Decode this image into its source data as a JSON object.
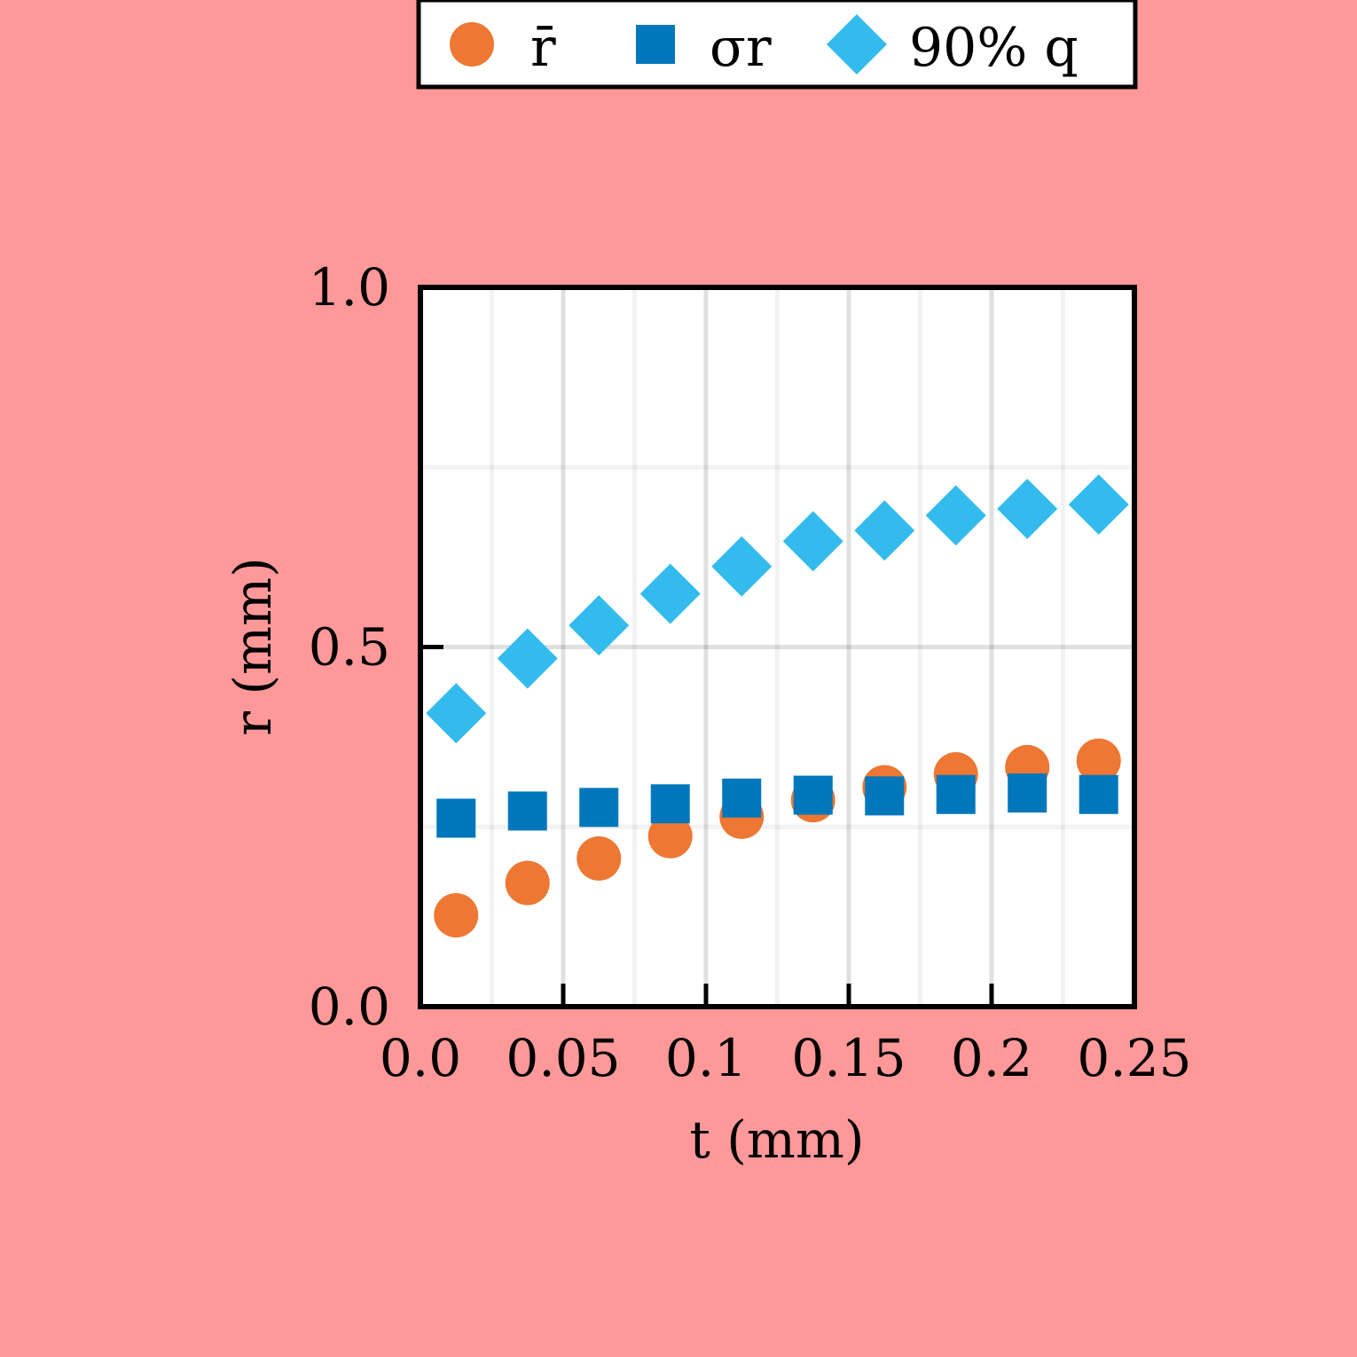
{
  "chart_data": {
    "type": "scatter",
    "xlabel": "t (mm)",
    "ylabel": "r (mm)",
    "xlim": [
      0.0,
      0.25
    ],
    "ylim": [
      0.0,
      1.0
    ],
    "x_ticks": [
      "0.0",
      "0.05",
      "0.1",
      "0.15",
      "0.2",
      "0.25"
    ],
    "y_ticks": [
      "0.0",
      "0.5",
      "1.0"
    ],
    "grid": true,
    "legend_position": "top",
    "x": [
      0.0125,
      0.0375,
      0.0625,
      0.0875,
      0.1125,
      0.1375,
      0.1625,
      0.1875,
      0.2125,
      0.2375
    ],
    "series": [
      {
        "name": "r̄",
        "marker": "circle",
        "color": "#ed7733",
        "values": [
          0.127,
          0.172,
          0.206,
          0.237,
          0.264,
          0.287,
          0.305,
          0.323,
          0.333,
          0.342
        ]
      },
      {
        "name": "σr",
        "marker": "square",
        "color": "#0077bb",
        "values": [
          0.262,
          0.272,
          0.277,
          0.282,
          0.29,
          0.294,
          0.293,
          0.295,
          0.297,
          0.295
        ]
      },
      {
        "name": "90% q",
        "marker": "diamond",
        "color": "#33bbee",
        "values": [
          0.408,
          0.484,
          0.53,
          0.574,
          0.612,
          0.647,
          0.662,
          0.683,
          0.692,
          0.698
        ]
      }
    ]
  }
}
